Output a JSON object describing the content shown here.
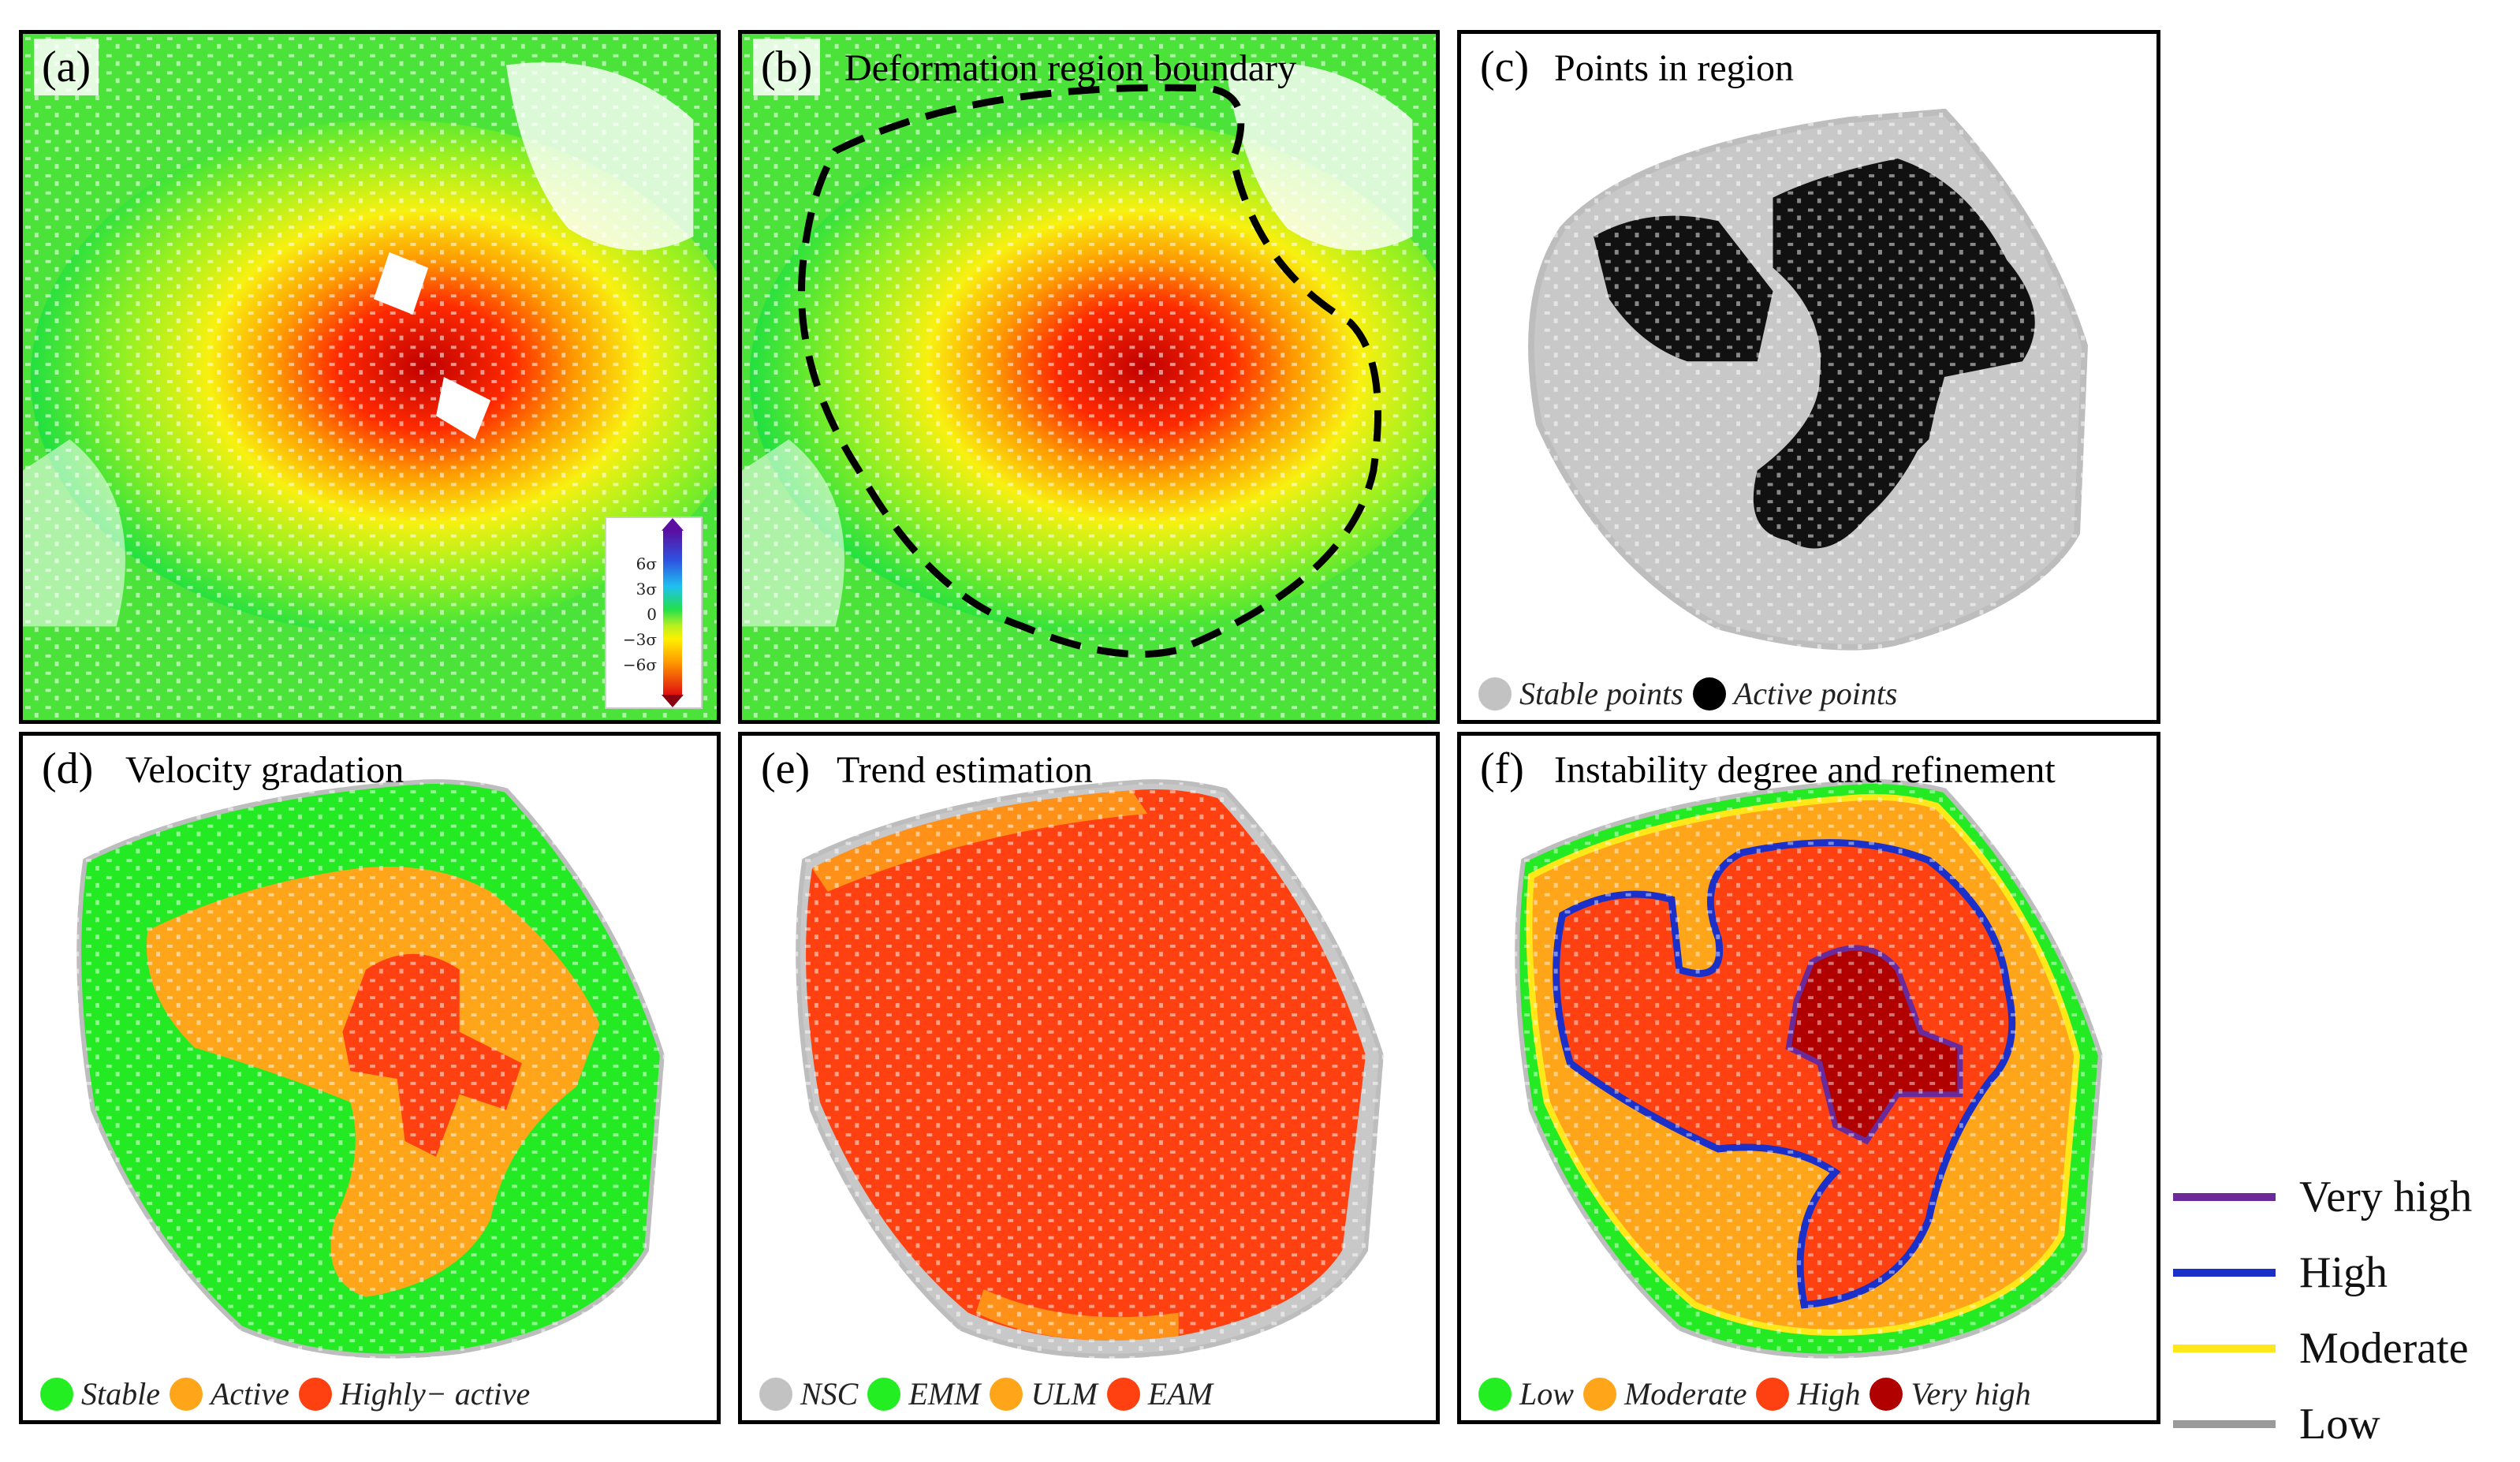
{
  "panels": {
    "a": {
      "label": "(a)",
      "title": ""
    },
    "b": {
      "label": "(b)",
      "title": "Deformation region boundary"
    },
    "c": {
      "label": "(c)",
      "title": "Points in region",
      "legend": [
        {
          "label": "Stable points",
          "color": "#c2c2c2"
        },
        {
          "label": "Active points",
          "color": "#000000"
        }
      ]
    },
    "d": {
      "label": "(d)",
      "title": "Velocity gradation",
      "legend": [
        {
          "label": "Stable",
          "color": "#22ee22"
        },
        {
          "label": "Active",
          "color": "#ffa51a"
        },
        {
          "label": "Highly− active",
          "color": "#ff4010"
        }
      ]
    },
    "e": {
      "label": "(e)",
      "title": "Trend estimation",
      "legend": [
        {
          "label": "NSC",
          "color": "#c2c2c2"
        },
        {
          "label": "EMM",
          "color": "#22ee22"
        },
        {
          "label": "ULM",
          "color": "#ffa51a"
        },
        {
          "label": "EAM",
          "color": "#ff4010"
        }
      ]
    },
    "f": {
      "label": "(f)",
      "title": "Instability degree and refinement",
      "legend": [
        {
          "label": "Low",
          "color": "#22ee22"
        },
        {
          "label": "Moderate",
          "color": "#ffa51a"
        },
        {
          "label": "High",
          "color": "#ff4010"
        },
        {
          "label": "Very high",
          "color": "#b00000"
        }
      ]
    }
  },
  "colorbar": {
    "ticks": [
      "6σ",
      "3σ",
      "0",
      "−3σ",
      "−6σ"
    ]
  },
  "outer_legend": [
    {
      "label": "Very high",
      "color": "#6a2a9a"
    },
    {
      "label": "High",
      "color": "#1a30c8"
    },
    {
      "label": "Moderate",
      "color": "#ffe81a"
    },
    {
      "label": "Low",
      "color": "#9a9a9a"
    }
  ]
}
